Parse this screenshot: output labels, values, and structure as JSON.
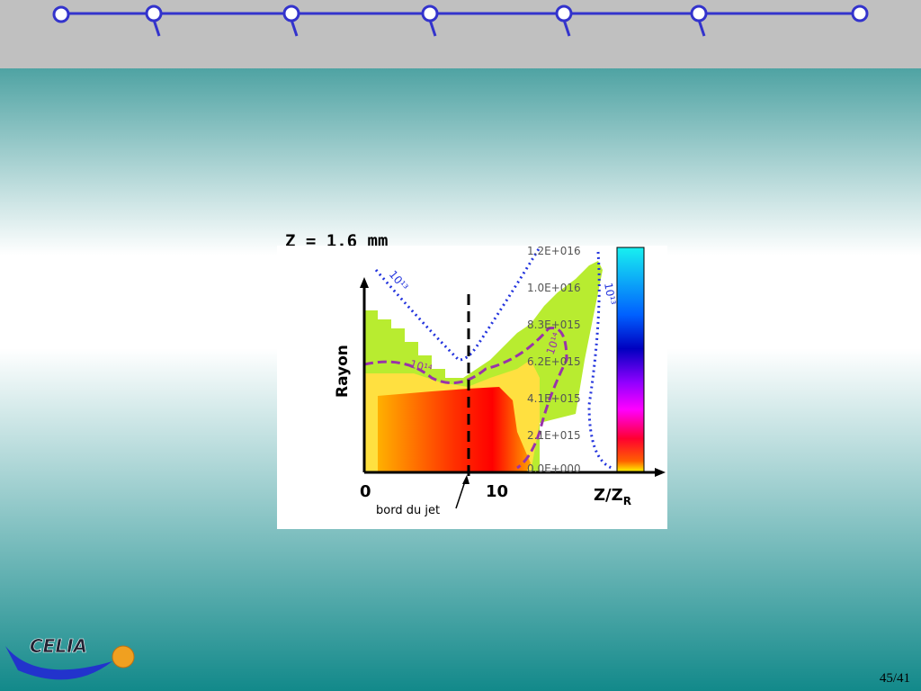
{
  "figure": {
    "title": "Z = 1.6 mm",
    "y_label": "Rayon",
    "x_label": "Z/Z",
    "x_label_sub": "R",
    "x_ticks": [
      "0",
      "10"
    ],
    "colorbar_labels": [
      "1.2E+016",
      "1.0E+016",
      "8.3E+015",
      "6.2E+015",
      "4.1E+015",
      "2.1E+015",
      "0.0E+000"
    ],
    "contour_labels": [
      "10¹³",
      "10¹⁴",
      "10¹³",
      "10¹⁴"
    ],
    "annotation": "bord du jet"
  },
  "footer": {
    "logo": "CELIA",
    "page_number": "45/41"
  }
}
